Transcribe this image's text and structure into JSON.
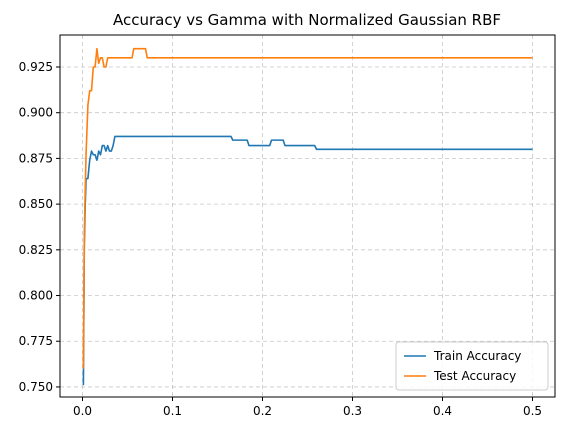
{
  "chart_data": {
    "type": "line",
    "title": "Accuracy vs Gamma with Normalized Gaussian RBF",
    "xlabel": "",
    "ylabel": "",
    "xlim": [
      -0.025,
      0.525
    ],
    "ylim": [
      0.7445,
      0.9425
    ],
    "x_ticks": [
      0.0,
      0.1,
      0.2,
      0.3,
      0.4,
      0.5
    ],
    "x_tick_labels": [
      "0.0",
      "0.1",
      "0.2",
      "0.3",
      "0.4",
      "0.5"
    ],
    "y_ticks": [
      0.75,
      0.775,
      0.8,
      0.825,
      0.85,
      0.875,
      0.9,
      0.925
    ],
    "y_tick_labels": [
      "0.750",
      "0.775",
      "0.800",
      "0.825",
      "0.850",
      "0.875",
      "0.900",
      "0.925"
    ],
    "grid": true,
    "legend_position": "bottom-right",
    "series": [
      {
        "name": "Train Accuracy",
        "color": "#1f77b4",
        "x": [
          0.001,
          0.002,
          0.003,
          0.004,
          0.006,
          0.008,
          0.01,
          0.012,
          0.014,
          0.016,
          0.018,
          0.02,
          0.022,
          0.024,
          0.026,
          0.028,
          0.03,
          0.032,
          0.034,
          0.036,
          0.038,
          0.165,
          0.167,
          0.183,
          0.185,
          0.208,
          0.21,
          0.223,
          0.225,
          0.258,
          0.26,
          0.5
        ],
        "y": [
          0.751,
          0.826,
          0.849,
          0.864,
          0.864,
          0.874,
          0.879,
          0.877,
          0.877,
          0.874,
          0.879,
          0.877,
          0.882,
          0.882,
          0.879,
          0.882,
          0.879,
          0.879,
          0.882,
          0.887,
          0.887,
          0.887,
          0.885,
          0.885,
          0.882,
          0.882,
          0.885,
          0.885,
          0.882,
          0.882,
          0.88,
          0.88
        ]
      },
      {
        "name": "Test Accuracy",
        "color": "#ff7f0e",
        "x": [
          0.001,
          0.002,
          0.003,
          0.004,
          0.006,
          0.008,
          0.01,
          0.012,
          0.014,
          0.016,
          0.018,
          0.02,
          0.022,
          0.024,
          0.026,
          0.028,
          0.03,
          0.055,
          0.057,
          0.07,
          0.072,
          0.5
        ],
        "y": [
          0.76,
          0.833,
          0.858,
          0.878,
          0.904,
          0.912,
          0.912,
          0.925,
          0.925,
          0.935,
          0.927,
          0.93,
          0.93,
          0.925,
          0.925,
          0.93,
          0.93,
          0.93,
          0.935,
          0.935,
          0.93,
          0.93
        ]
      }
    ]
  }
}
